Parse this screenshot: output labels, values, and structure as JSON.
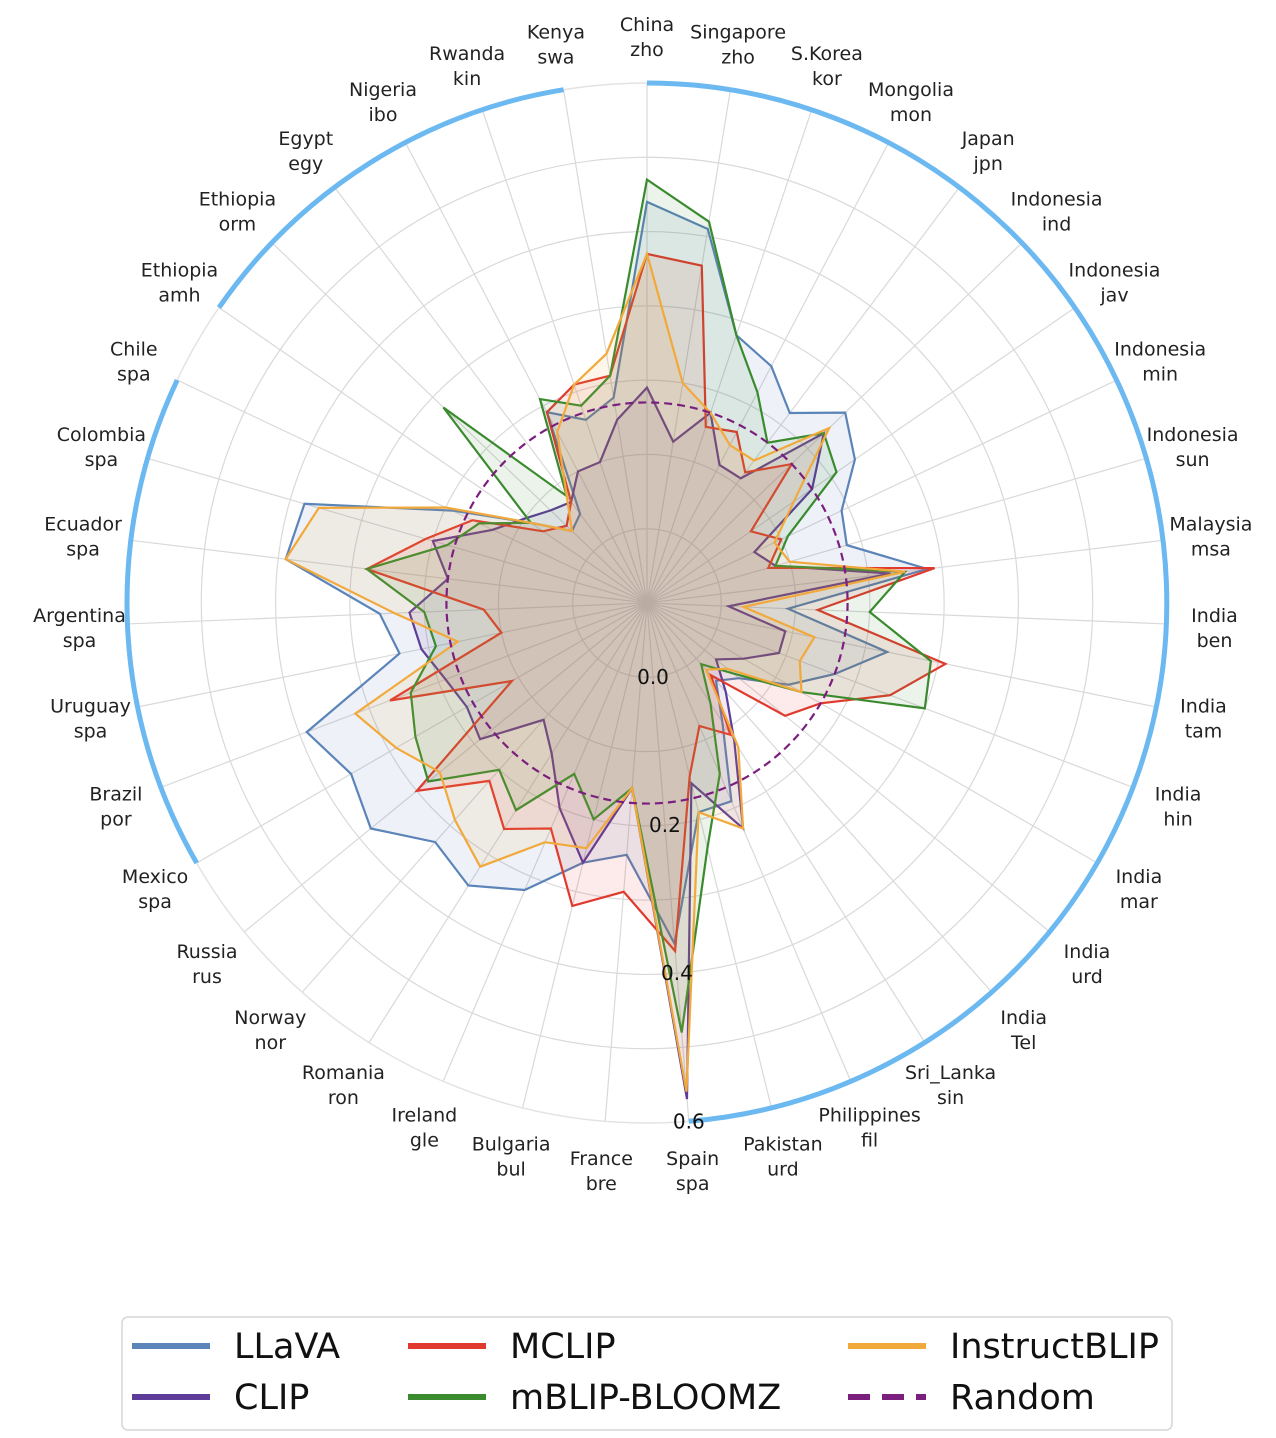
{
  "chart_data": {
    "type": "radar",
    "rlim": [
      -0.1,
      0.6
    ],
    "rticks": [
      0.0,
      0.2,
      0.4,
      0.6
    ],
    "rtick_labels": [
      "0.0",
      "0.2",
      "0.4",
      "0.6"
    ],
    "grid": true,
    "legend_position": "bottom",
    "categories": [
      {
        "line1": "China",
        "line2": "zho"
      },
      {
        "line1": "Singapore",
        "line2": "zho"
      },
      {
        "line1": "S.Korea",
        "line2": "kor"
      },
      {
        "line1": "Mongolia",
        "line2": "mon"
      },
      {
        "line1": "Japan",
        "line2": "jpn"
      },
      {
        "line1": "Indonesia",
        "line2": "ind"
      },
      {
        "line1": "Indonesia",
        "line2": "jav"
      },
      {
        "line1": "Indonesia",
        "line2": "min"
      },
      {
        "line1": "Indonesia",
        "line2": "sun"
      },
      {
        "line1": "Malaysia",
        "line2": "msa"
      },
      {
        "line1": "India",
        "line2": "ben"
      },
      {
        "line1": "India",
        "line2": "tam"
      },
      {
        "line1": "India",
        "line2": "hin"
      },
      {
        "line1": "India",
        "line2": "mar"
      },
      {
        "line1": "India",
        "line2": "urd"
      },
      {
        "line1": "India",
        "line2": "Tel"
      },
      {
        "line1": "Sri_Lanka",
        "line2": "sin"
      },
      {
        "line1": "Philippines",
        "line2": "fil"
      },
      {
        "line1": "Pakistan",
        "line2": "urd"
      },
      {
        "line1": "Spain",
        "line2": "spa"
      },
      {
        "line1": "France",
        "line2": "bre"
      },
      {
        "line1": "Bulgaria",
        "line2": "bul"
      },
      {
        "line1": "Ireland",
        "line2": "gle"
      },
      {
        "line1": "Romania",
        "line2": "ron"
      },
      {
        "line1": "Norway",
        "line2": "nor"
      },
      {
        "line1": "Russia",
        "line2": "rus"
      },
      {
        "line1": "Mexico",
        "line2": "spa"
      },
      {
        "line1": "Brazil",
        "line2": "por"
      },
      {
        "line1": "Uruguay",
        "line2": "spa"
      },
      {
        "line1": "Argentina",
        "line2": "spa"
      },
      {
        "line1": "Ecuador",
        "line2": "spa"
      },
      {
        "line1": "Colombia",
        "line2": "spa"
      },
      {
        "line1": "Chile",
        "line2": "spa"
      },
      {
        "line1": "Ethiopia",
        "line2": "amh"
      },
      {
        "line1": "Ethiopia",
        "line2": "orm"
      },
      {
        "line1": "Egypt",
        "line2": "egy"
      },
      {
        "line1": "Nigeria",
        "line2": "ibo"
      },
      {
        "line1": "Rwanda",
        "line2": "kin"
      },
      {
        "line1": "Kenya",
        "line2": "swa"
      }
    ],
    "series": [
      {
        "name": "LLaVA",
        "color": "#5b84b8",
        "fill_opacity": 0.1,
        "dashed": false,
        "values": [
          0.44,
          0.41,
          0.28,
          0.26,
          0.22,
          0.27,
          0.24,
          0.19,
          0.18,
          0.28,
          0.09,
          0.23,
          0.17,
          0.12,
          0.06,
          0.04,
          0.09,
          0.19,
          0.19,
          0.36,
          0.24,
          0.26,
          0.32,
          0.35,
          0.33,
          0.38,
          0.36,
          0.39,
          0.24,
          0.26,
          0.39,
          0.38,
          0.19,
          0.09,
          0.04,
          0.05,
          0.19,
          0.16,
          0.18
        ]
      },
      {
        "name": "CLIP",
        "color": "#5e3c99",
        "fill_opacity": 0.1,
        "dashed": false,
        "values": [
          0.19,
          0.12,
          0.17,
          0.11,
          0.11,
          0.23,
          0.17,
          0.06,
          0.08,
          0.23,
          0.01,
          0.09,
          0.09,
          0.05,
          0.02,
          0.06,
          0.12,
          0.23,
          0.15,
          0.57,
          0.15,
          0.26,
          0.2,
          0.14,
          0.11,
          0.19,
          0.18,
          0.19,
          0.21,
          0.22,
          0.17,
          0.2,
          0.13,
          0.1,
          0.08,
          0.07,
          0.1,
          0.1,
          0.15
        ]
      },
      {
        "name": "MCLIP",
        "color": "#e03a2e",
        "fill_opacity": 0.1,
        "dashed": false,
        "values": [
          0.37,
          0.36,
          0.15,
          0.16,
          0.12,
          0.17,
          0.07,
          0.1,
          0.07,
          0.29,
          0.13,
          0.31,
          0.25,
          0.17,
          0.14,
          0.03,
          0.11,
          0.08,
          0.14,
          0.37,
          0.29,
          0.32,
          0.23,
          0.26,
          0.22,
          0.3,
          0.11,
          0.27,
          0.1,
          0.12,
          0.28,
          0.21,
          0.16,
          0.07,
          0.05,
          0.07,
          0.19,
          0.21,
          0.21
        ]
      },
      {
        "name": "mBLIP-BLOOMZ",
        "color": "#3a8a2e",
        "fill_opacity": 0.1,
        "dashed": false,
        "values": [
          0.47,
          0.42,
          0.28,
          0.22,
          0.17,
          0.23,
          0.21,
          0.11,
          0.08,
          0.25,
          0.2,
          0.29,
          0.3,
          0.14,
          0.05,
          0.01,
          0.06,
          0.15,
          0.24,
          0.48,
          0.15,
          0.2,
          0.15,
          0.23,
          0.2,
          0.28,
          0.26,
          0.24,
          0.19,
          0.2,
          0.28,
          0.18,
          0.15,
          0.09,
          0.28,
          0.08,
          0.21,
          0.18,
          0.21
        ]
      },
      {
        "name": "InstructBLIP",
        "color": "#f2a93b",
        "fill_opacity": 0.1,
        "dashed": false,
        "values": [
          0.37,
          0.2,
          0.17,
          0.14,
          0.14,
          0.24,
          0.14,
          0.09,
          0.1,
          0.25,
          0.03,
          0.13,
          0.12,
          0.14,
          0.04,
          0.02,
          0.13,
          0.23,
          0.19,
          0.56,
          0.15,
          0.24,
          0.25,
          0.32,
          0.29,
          0.26,
          0.29,
          0.32,
          0.16,
          0.24,
          0.39,
          0.36,
          0.2,
          0.09,
          0.04,
          0.08,
          0.16,
          0.21,
          0.24
        ]
      },
      {
        "name": "Random",
        "color": "#7b1f7f",
        "fill_opacity": 0,
        "dashed": true,
        "constant": 0.17
      }
    ]
  }
}
